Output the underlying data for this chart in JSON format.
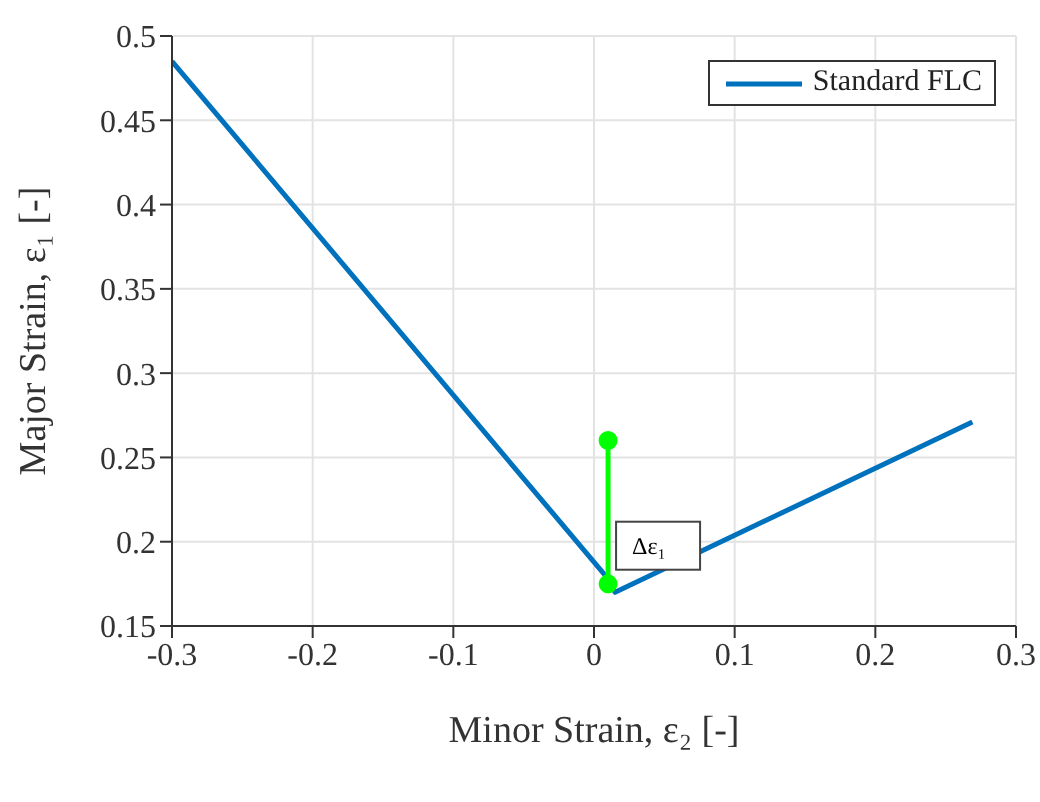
{
  "chart_data": {
    "type": "line",
    "xlabel": "Minor Strain, ε₂ [-]",
    "ylabel": "Major Strain, ε₁ [-]",
    "xlim": [
      -0.3,
      0.3
    ],
    "xticks": [
      -0.3,
      -0.2,
      -0.1,
      0,
      0.1,
      0.2,
      0.3
    ],
    "ylim": [
      0.15,
      0.5
    ],
    "yticks": [
      0.15,
      0.2,
      0.25,
      0.3,
      0.35,
      0.4,
      0.45,
      0.5
    ],
    "grid": true,
    "legend": "top right",
    "series": [
      {
        "name": "Standard FLC",
        "color": "#0072bd",
        "x": [
          -0.3,
          0.009,
          0.015,
          0.269
        ],
        "values": [
          0.485,
          0.179,
          0.17,
          0.271
        ],
        "marker": "none"
      },
      {
        "color": "#00ff00",
        "x": [
          0.01,
          0.01
        ],
        "values": [
          0.175,
          0.26
        ],
        "marker": "circle"
      }
    ],
    "annotations": [
      {
        "text": "Δε₁",
        "x": 0.01,
        "y": 0.2
      }
    ]
  }
}
